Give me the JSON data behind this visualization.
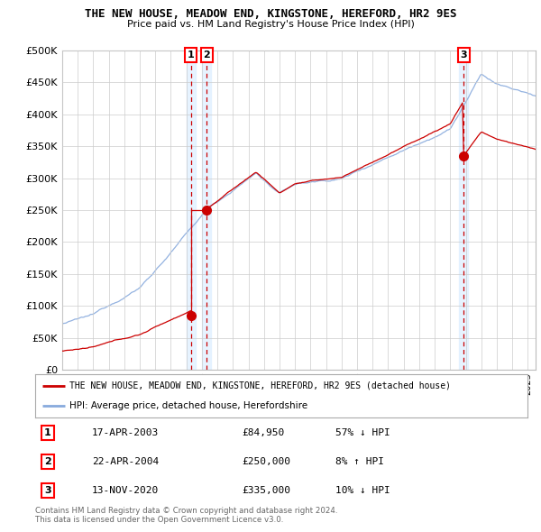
{
  "title": "THE NEW HOUSE, MEADOW END, KINGSTONE, HEREFORD, HR2 9ES",
  "subtitle": "Price paid vs. HM Land Registry's House Price Index (HPI)",
  "legend_line1": "THE NEW HOUSE, MEADOW END, KINGSTONE, HEREFORD, HR2 9ES (detached house)",
  "legend_line2": "HPI: Average price, detached house, Herefordshire",
  "footnote": "Contains HM Land Registry data © Crown copyright and database right 2024.\nThis data is licensed under the Open Government Licence v3.0.",
  "sales": [
    {
      "num": 1,
      "date": "17-APR-2003",
      "price": 84950,
      "year": 2003.29,
      "hpi_pct": "57% ↓ HPI"
    },
    {
      "num": 2,
      "date": "22-APR-2004",
      "price": 250000,
      "year": 2004.31,
      "hpi_pct": "8% ↑ HPI"
    },
    {
      "num": 3,
      "date": "13-NOV-2020",
      "price": 335000,
      "year": 2020.87,
      "hpi_pct": "10% ↓ HPI"
    }
  ],
  "property_color": "#cc0000",
  "hpi_color": "#88aadd",
  "vline_color": "#cc0000",
  "shade_color": "#ddeeff",
  "ylim": [
    0,
    500000
  ],
  "yticks": [
    0,
    50000,
    100000,
    150000,
    200000,
    250000,
    300000,
    350000,
    400000,
    450000,
    500000
  ],
  "xlim_start": 1995,
  "xlim_end": 2025.5,
  "grid_color": "#cccccc",
  "background_color": "#ffffff"
}
